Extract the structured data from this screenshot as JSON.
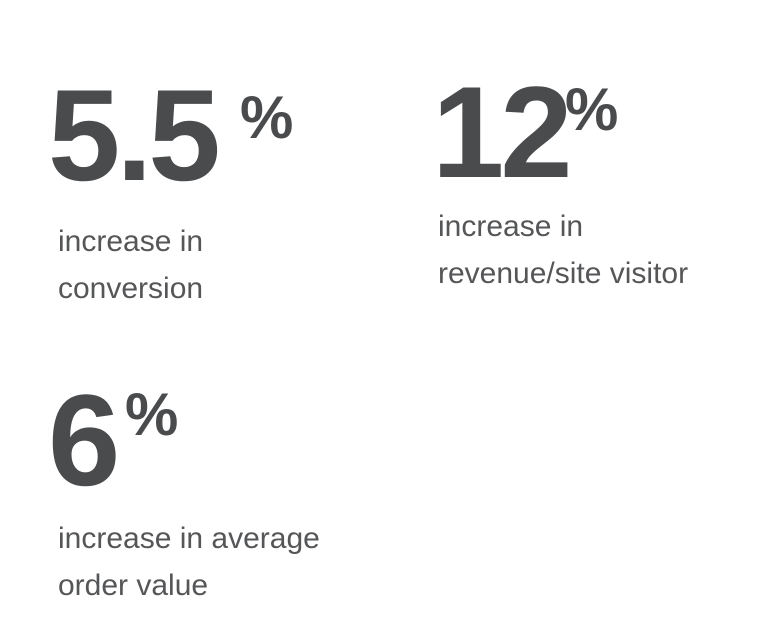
{
  "stats": [
    {
      "value": 5.5,
      "unit": "%",
      "label_lines": [
        "increase in",
        "conversion"
      ]
    },
    {
      "value": 12,
      "unit": "%",
      "label_lines": [
        "increase in",
        "revenue/site visitor"
      ]
    },
    {
      "value": 6,
      "unit": "%",
      "label_lines": [
        "increase in average",
        "order value"
      ]
    }
  ]
}
